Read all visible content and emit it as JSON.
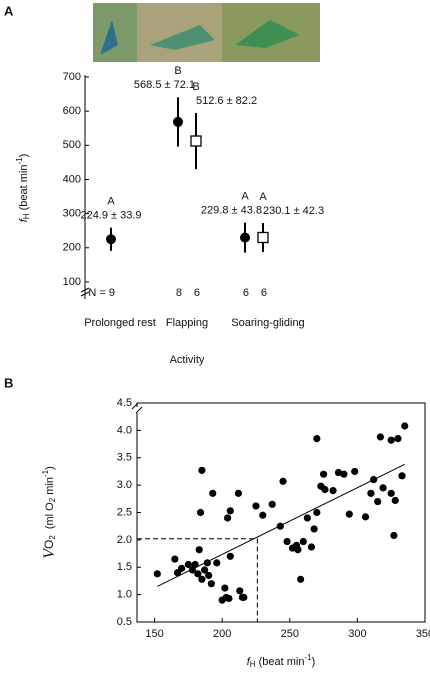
{
  "chart_data": [
    {
      "type": "errorbar",
      "panel": "A",
      "categories": [
        "Prolonged rest",
        "Flapping",
        "Soaring-gliding"
      ],
      "x_label": "Activity",
      "y_label_parts": [
        "f",
        "H",
        " (beat min",
        "-1",
        ")"
      ],
      "ylim": [
        50,
        700
      ],
      "yticks": [
        100,
        200,
        300,
        400,
        500,
        600,
        700
      ],
      "series": [
        {
          "marker": "circle",
          "color": "#000000",
          "values": [
            224.9,
            568.5,
            229.8
          ],
          "errors": [
            33.9,
            72.1,
            43.8
          ],
          "value_labels": [
            "224.9 ± 33.9",
            "568.5 ± 72.1",
            "229.8 ± 43.8"
          ],
          "letters": [
            "A",
            "B",
            "A"
          ],
          "n_labels": [
            "N = 9",
            "8",
            "6"
          ]
        },
        {
          "marker": "square",
          "color": "#000000",
          "values": [
            null,
            512.6,
            230.1
          ],
          "errors": [
            null,
            82.2,
            42.3
          ],
          "value_labels": [
            null,
            "512.6 ± 82.2",
            "230.1 ± 42.3"
          ],
          "letters": [
            null,
            "B",
            "A"
          ],
          "n_labels": [
            null,
            "6",
            "6"
          ]
        }
      ]
    },
    {
      "type": "scatter",
      "panel": "B",
      "x_label_parts": [
        "f",
        "H",
        " (beat min",
        "-1",
        ")"
      ],
      "y_label_parts": [
        "V",
        "O",
        "2",
        "(ml O",
        "2",
        " min",
        "-1",
        ")"
      ],
      "xlim": [
        137,
        350
      ],
      "xticks": [
        150,
        200,
        250,
        300,
        350
      ],
      "ylim": [
        0.5,
        4.5
      ],
      "yticks": [
        {
          "value": 0.5,
          "label": "0.5"
        },
        {
          "value": 1,
          "label": "1.0"
        },
        {
          "value": 1.5,
          "label": "1.5"
        },
        {
          "value": 2,
          "label": "2.0"
        },
        {
          "value": 2.5,
          "label": "2.5"
        },
        {
          "value": 3,
          "label": "3.0"
        },
        {
          "value": 3.5,
          "label": "3.5"
        },
        {
          "value": 4,
          "label": "4.0"
        },
        {
          "value": 4.5,
          "label": "4.5"
        }
      ],
      "color": "#000000",
      "x": [
        152,
        165,
        167,
        170,
        175,
        178,
        180,
        182,
        183,
        184,
        185,
        185,
        187,
        189,
        190,
        192,
        193,
        196,
        200,
        202,
        203,
        205,
        204,
        206,
        206,
        212,
        213,
        215,
        216,
        225,
        230,
        237,
        243,
        245,
        248,
        252,
        255,
        256,
        258,
        260,
        263,
        266,
        268,
        270,
        270,
        273,
        275,
        276,
        282,
        286,
        290,
        294,
        298,
        306,
        310,
        312,
        315,
        317,
        319,
        325,
        325,
        327,
        328,
        330,
        333,
        335
      ],
      "y": [
        1.38,
        1.65,
        1.4,
        1.48,
        1.55,
        1.45,
        1.55,
        1.38,
        1.82,
        2.5,
        3.27,
        1.28,
        1.45,
        1.58,
        1.35,
        1.2,
        2.85,
        1.58,
        0.9,
        1.12,
        0.95,
        0.93,
        2.4,
        2.53,
        1.7,
        2.85,
        1.07,
        0.95,
        0.95,
        2.62,
        2.45,
        2.65,
        2.25,
        3.07,
        1.97,
        1.85,
        1.9,
        1.82,
        1.28,
        1.97,
        2.4,
        1.87,
        2.2,
        3.85,
        2.5,
        2.98,
        3.2,
        2.92,
        2.9,
        3.23,
        3.2,
        2.47,
        3.25,
        2.42,
        2.85,
        3.1,
        2.7,
        3.88,
        2.95,
        3.82,
        2.85,
        2.08,
        2.72,
        3.85,
        3.17,
        4.08
      ],
      "regression": {
        "x": [
          152,
          335
        ],
        "y": [
          1.15,
          3.38
        ]
      },
      "reference": {
        "x": 226,
        "y": 2.02
      }
    }
  ]
}
